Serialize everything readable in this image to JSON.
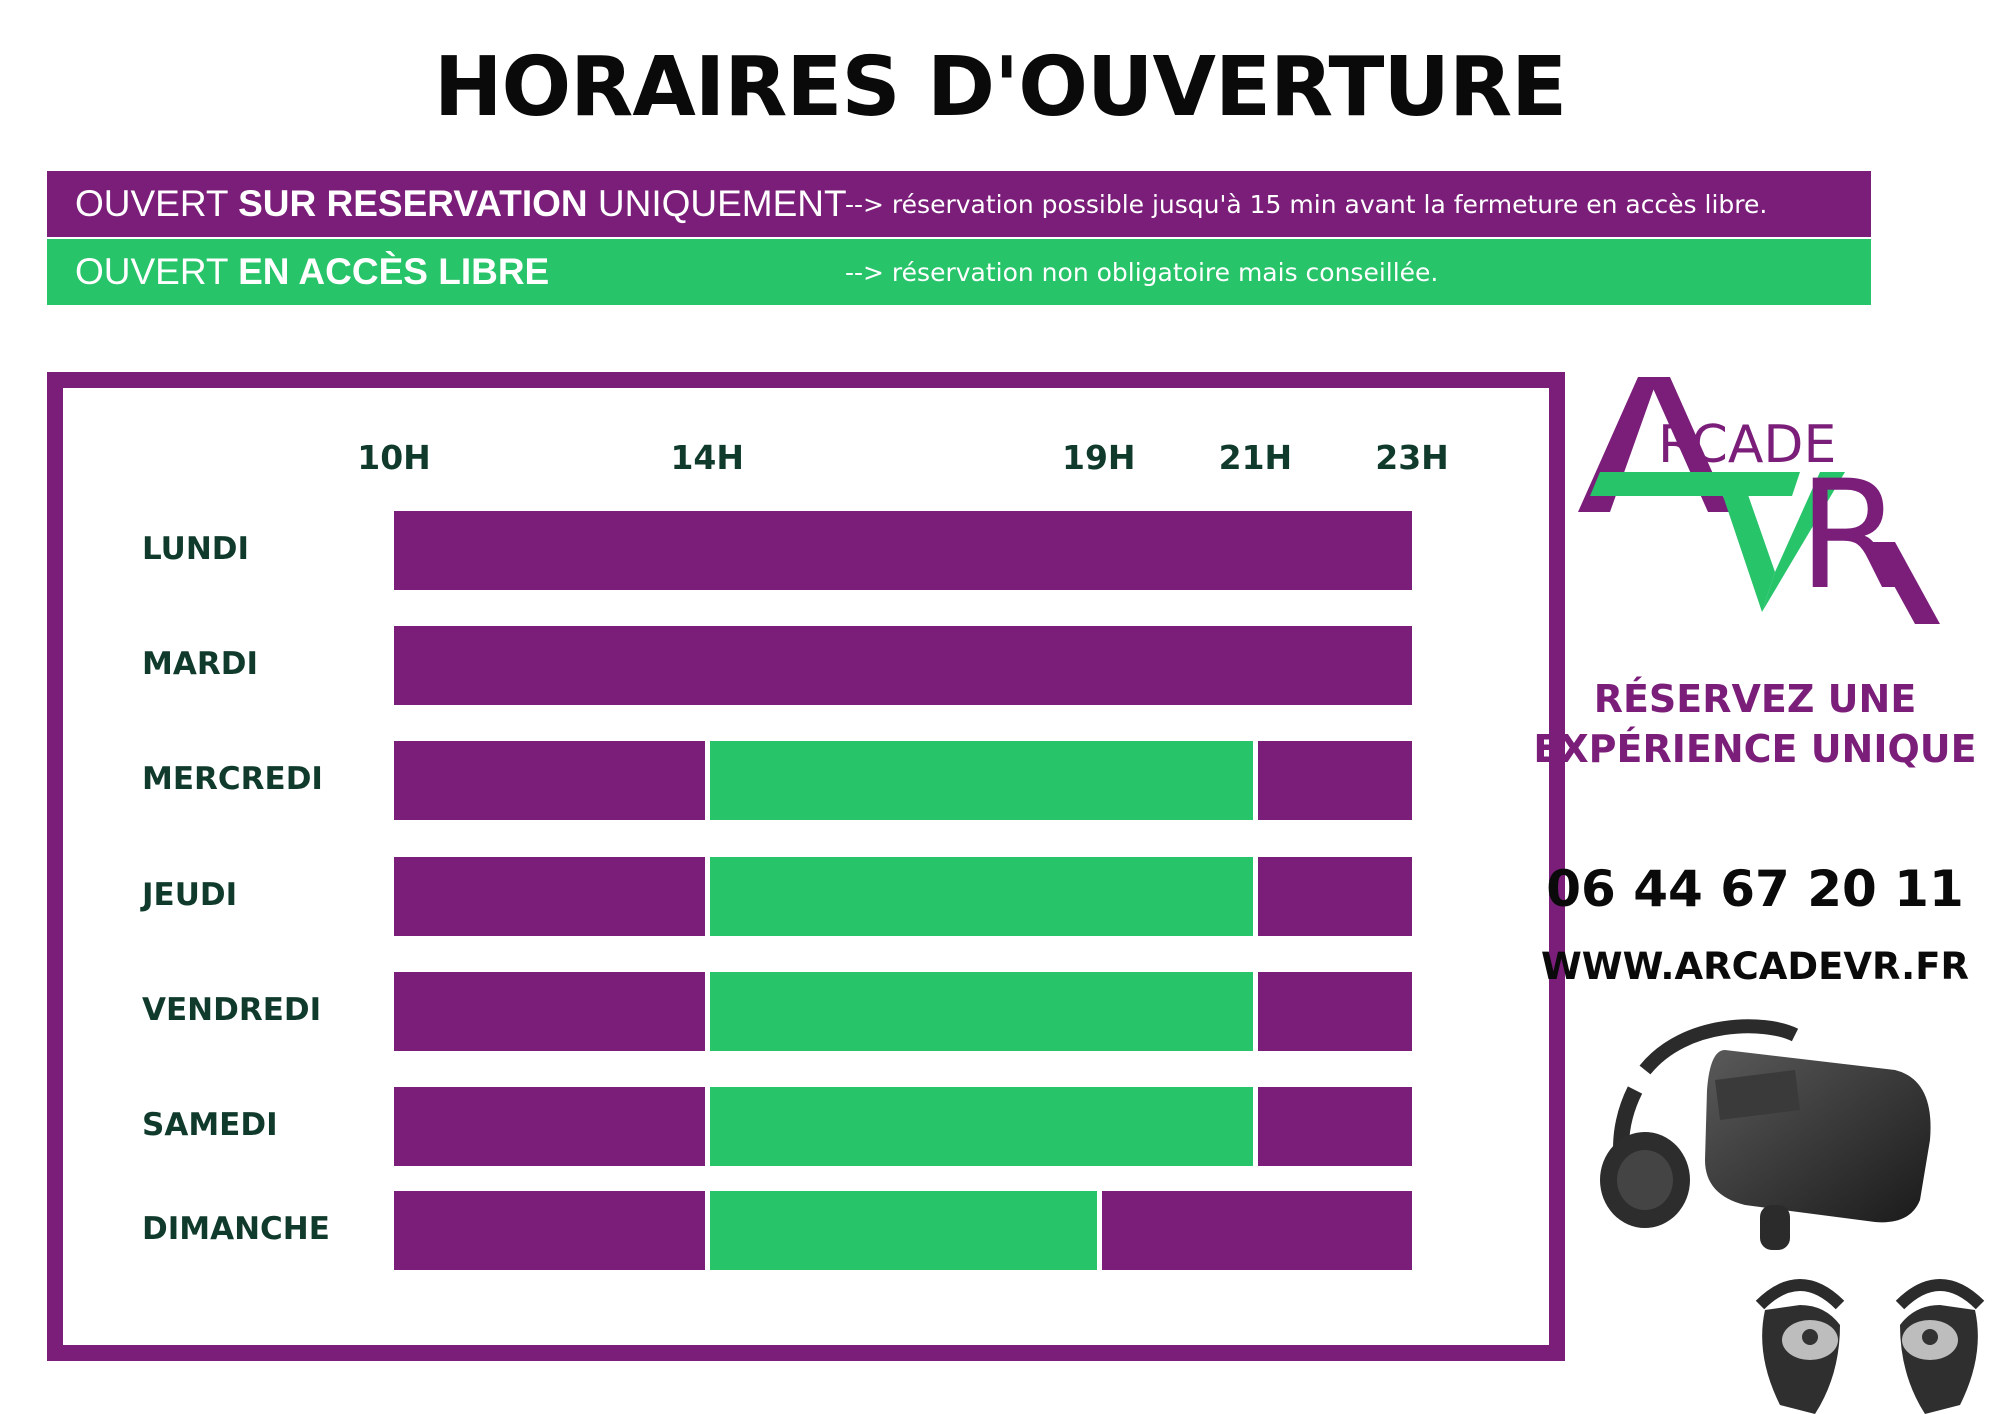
{
  "title": "HORAIRES D'OUVERTURE",
  "legend": {
    "reservation": {
      "prefix": "OUVERT ",
      "bold": "SUR RESERVATION",
      "suffix": " UNIQUEMENT",
      "note": "--> réservation possible jusqu'à 15 min avant la fermeture en accès libre."
    },
    "free": {
      "prefix": "OUVERT ",
      "bold": "EN ACCÈS LIBRE",
      "suffix": "",
      "note": "--> réservation non obligatoire mais conseillée."
    }
  },
  "colors": {
    "reservation": "#7b1e7a",
    "free": "#27c46a",
    "text_dark": "#0f3a2c"
  },
  "schedule": {
    "hour_labels": [
      "10H",
      "14H",
      "19H",
      "21H",
      "23H"
    ],
    "days": [
      {
        "name": "LUNDI",
        "segments": [
          {
            "type": "reservation",
            "from": 10,
            "to": 23
          }
        ]
      },
      {
        "name": "MARDI",
        "segments": [
          {
            "type": "reservation",
            "from": 10,
            "to": 23
          }
        ]
      },
      {
        "name": "MERCREDI",
        "segments": [
          {
            "type": "reservation",
            "from": 10,
            "to": 14
          },
          {
            "type": "free",
            "from": 14,
            "to": 21
          },
          {
            "type": "reservation",
            "from": 21,
            "to": 23
          }
        ]
      },
      {
        "name": "JEUDI",
        "segments": [
          {
            "type": "reservation",
            "from": 10,
            "to": 14
          },
          {
            "type": "free",
            "from": 14,
            "to": 21
          },
          {
            "type": "reservation",
            "from": 21,
            "to": 23
          }
        ]
      },
      {
        "name": "VENDREDI",
        "segments": [
          {
            "type": "reservation",
            "from": 10,
            "to": 14
          },
          {
            "type": "free",
            "from": 14,
            "to": 21
          },
          {
            "type": "reservation",
            "from": 21,
            "to": 23
          }
        ]
      },
      {
        "name": "SAMEDI",
        "segments": [
          {
            "type": "reservation",
            "from": 10,
            "to": 14
          },
          {
            "type": "free",
            "from": 14,
            "to": 21
          },
          {
            "type": "reservation",
            "from": 21,
            "to": 23
          }
        ]
      },
      {
        "name": "DIMANCHE",
        "segments": [
          {
            "type": "reservation",
            "from": 10,
            "to": 14
          },
          {
            "type": "free",
            "from": 14,
            "to": 19
          },
          {
            "type": "reservation",
            "from": 19,
            "to": 23
          }
        ]
      }
    ]
  },
  "brand": {
    "logo_text_top": "RCADE",
    "logo_big_a": "A",
    "logo_v": "V",
    "logo_r": "R",
    "tagline_line1": "RÉSERVEZ UNE",
    "tagline_line2": "EXPÉRIENCE UNIQUE",
    "phone": "06 44 67 20 11",
    "website": "WWW.ARCADEVR.FR"
  },
  "icons": {
    "headset": "vr-headset-icon",
    "controllers": "vr-controllers-icon"
  }
}
